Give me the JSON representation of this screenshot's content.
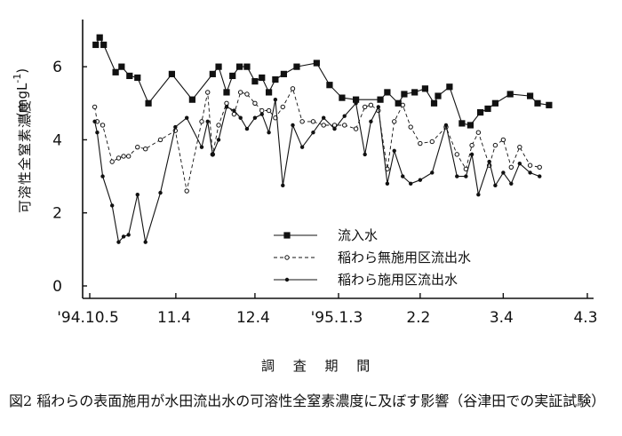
{
  "chart_data": {
    "type": "line",
    "ylabel": "可溶性全窒素濃度",
    "yunit": "(mgL",
    "yunit_exp": "-1",
    "yunit_close": ")",
    "xlabel": "調 査 期 間",
    "caption": "図2 稲わらの表面施用が水田流出水の可溶性全窒素濃度に及ぼす影響（谷津田での実証試験）",
    "ylim": [
      0,
      7
    ],
    "yticks": [
      0,
      2,
      4,
      6
    ],
    "xlim": [
      0,
      100
    ],
    "xticks": [
      {
        "pos": 0,
        "label": "'94.10.5"
      },
      {
        "pos": 17.3,
        "label": "11.4"
      },
      {
        "pos": 33.2,
        "label": "12.4"
      },
      {
        "pos": 50.0,
        "label": "'95.1.3"
      },
      {
        "pos": 66.4,
        "label": "2.2"
      },
      {
        "pos": 83.1,
        "label": "3.4"
      },
      {
        "pos": 100,
        "label": "4.3"
      }
    ],
    "legend_placement": "bottom-center",
    "series": [
      {
        "name": "流入水",
        "marker": "square",
        "dash": "solid",
        "x": [
          1.2,
          2.0,
          2.8,
          5.2,
          6.4,
          8.0,
          9.6,
          11.8,
          16.5,
          20.6,
          24.7,
          25.9,
          27.5,
          28.7,
          30.1,
          31.6,
          33.2,
          34.6,
          36.0,
          37.3,
          39.0,
          41.6,
          45.6,
          48.2,
          50.7,
          53.5,
          58.4,
          59.8,
          62.0,
          63.2,
          65.3,
          67.4,
          69.2,
          70.0,
          72.3,
          74.8,
          76.5,
          78.5,
          80.0,
          81.5,
          84.5,
          88.5,
          90.0,
          92.3
        ],
        "y": [
          6.6,
          6.8,
          6.6,
          5.85,
          6.0,
          5.75,
          5.7,
          5.0,
          5.8,
          5.1,
          5.8,
          6.0,
          5.3,
          5.75,
          6.0,
          6.0,
          5.6,
          5.7,
          5.3,
          5.65,
          5.8,
          6.0,
          6.1,
          5.5,
          5.15,
          5.1,
          5.1,
          5.3,
          5.0,
          5.25,
          5.3,
          5.4,
          5.0,
          5.2,
          5.45,
          4.45,
          4.4,
          4.75,
          4.85,
          5.0,
          5.25,
          5.2,
          5.0,
          4.95
        ]
      },
      {
        "name": "稲わら無施用区流出水",
        "marker": "circle-open",
        "dash": "dashed",
        "x": [
          1.0,
          1.5,
          2.6,
          4.5,
          5.8,
          6.8,
          7.8,
          9.6,
          11.2,
          14.2,
          17.2,
          19.5,
          22.5,
          23.7,
          24.7,
          25.9,
          27.5,
          29.0,
          30.3,
          31.6,
          33.2,
          34.6,
          36.0,
          37.3,
          38.8,
          40.8,
          42.7,
          44.9,
          47.0,
          49.2,
          51.2,
          53.5,
          55.3,
          56.5,
          58.0,
          59.8,
          61.2,
          62.9,
          64.5,
          66.4,
          68.8,
          71.6,
          73.8,
          75.6,
          76.8,
          78.1,
          80.3,
          81.5,
          83.1,
          84.7,
          86.4,
          88.5,
          90.4
        ],
        "y": [
          4.9,
          4.5,
          4.4,
          3.4,
          3.5,
          3.55,
          3.55,
          3.8,
          3.75,
          4.0,
          4.25,
          2.6,
          4.5,
          5.3,
          3.6,
          4.4,
          5.0,
          4.7,
          5.3,
          5.25,
          5.0,
          4.8,
          4.8,
          4.6,
          4.9,
          5.4,
          4.5,
          4.5,
          4.4,
          4.4,
          4.4,
          4.3,
          4.9,
          4.95,
          4.8,
          3.2,
          4.5,
          4.95,
          4.35,
          3.9,
          3.95,
          4.35,
          3.6,
          3.2,
          3.85,
          4.2,
          3.3,
          3.85,
          4.0,
          3.25,
          3.8,
          3.3,
          3.25
        ]
      },
      {
        "name": "稲わら施用区流出水",
        "marker": "circle-filled",
        "dash": "solid",
        "x": [
          1.0,
          1.5,
          2.6,
          4.5,
          5.8,
          6.8,
          7.8,
          9.6,
          11.2,
          14.2,
          17.2,
          19.5,
          22.5,
          23.7,
          24.7,
          25.9,
          27.5,
          29.0,
          30.3,
          31.6,
          33.2,
          34.6,
          36.0,
          37.3,
          38.8,
          40.8,
          42.7,
          44.9,
          47.0,
          49.2,
          51.2,
          53.5,
          55.3,
          56.5,
          58.0,
          59.8,
          61.2,
          62.9,
          64.5,
          66.4,
          68.8,
          71.6,
          73.8,
          75.6,
          76.8,
          78.1,
          80.3,
          81.5,
          83.1,
          84.7,
          86.4,
          88.5,
          90.4
        ],
        "y": [
          4.5,
          4.2,
          3.0,
          2.2,
          1.2,
          1.35,
          1.4,
          2.5,
          1.2,
          2.55,
          4.35,
          4.6,
          3.8,
          4.5,
          3.6,
          4.0,
          4.9,
          4.8,
          4.6,
          4.3,
          4.6,
          4.7,
          4.2,
          5.1,
          2.75,
          4.4,
          3.8,
          4.2,
          4.6,
          4.3,
          4.65,
          5.0,
          3.6,
          4.5,
          4.9,
          2.8,
          3.7,
          3.0,
          2.8,
          2.9,
          3.1,
          4.4,
          3.0,
          3.0,
          3.6,
          2.5,
          3.4,
          2.75,
          3.1,
          2.8,
          3.35,
          3.1,
          3.0
        ]
      }
    ]
  }
}
